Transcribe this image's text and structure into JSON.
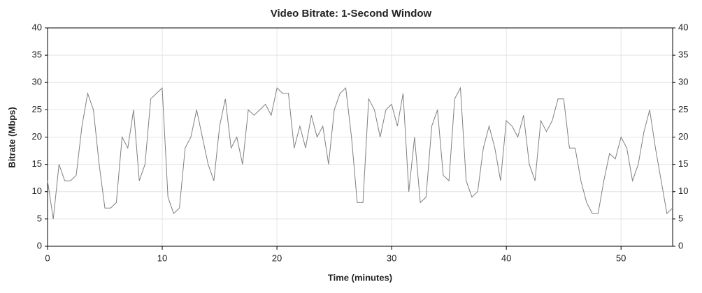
{
  "chart_data": {
    "type": "line",
    "title": "Video Bitrate: 1-Second Window",
    "x_label": "Time (minutes)",
    "y_label": "Bitrate (Mbps)",
    "xlim": [
      0,
      54.5
    ],
    "ylim": [
      0,
      40
    ],
    "xticks": [
      0,
      10,
      20,
      30,
      40,
      50
    ],
    "yticks": [
      0,
      5,
      10,
      15,
      20,
      25,
      30,
      35,
      40
    ],
    "grid": true,
    "series": [
      {
        "color": "#808080",
        "x": [
          0,
          0.5,
          1,
          1.5,
          2,
          2.5,
          3,
          3.5,
          4,
          4.5,
          5,
          5.5,
          6,
          6.5,
          7,
          7.5,
          8,
          8.5,
          9,
          9.5,
          10,
          10.5,
          11,
          11.5,
          12,
          12.5,
          13,
          13.5,
          14,
          14.5,
          15,
          15.5,
          16,
          16.5,
          17,
          17.5,
          18,
          18.5,
          19,
          19.5,
          20,
          20.5,
          21,
          21.5,
          22,
          22.5,
          23,
          23.5,
          24,
          24.5,
          25,
          25.5,
          26,
          26.5,
          27,
          27.5,
          28,
          28.5,
          29,
          29.5,
          30,
          30.5,
          31,
          31.5,
          32,
          32.5,
          33,
          33.5,
          34,
          34.5,
          35,
          35.5,
          36,
          36.5,
          37,
          37.5,
          38,
          38.5,
          39,
          39.5,
          40,
          40.5,
          41,
          41.5,
          42,
          42.5,
          43,
          43.5,
          44,
          44.5,
          45,
          45.5,
          46,
          46.5,
          47,
          47.5,
          48,
          48.5,
          49,
          49.5,
          50,
          50.5,
          51,
          51.5,
          52,
          52.5,
          53,
          53.5,
          54,
          54.5
        ],
        "values": [
          12,
          5,
          15,
          12,
          12,
          13,
          22,
          28,
          25,
          15,
          7,
          7,
          8,
          20,
          18,
          25,
          12,
          15,
          27,
          28,
          29,
          9,
          6,
          7,
          18,
          20,
          25,
          20,
          15,
          12,
          22,
          27,
          18,
          20,
          15,
          25,
          24,
          25,
          26,
          24,
          29,
          28,
          28,
          18,
          22,
          18,
          24,
          20,
          22,
          15,
          25,
          28,
          29,
          20,
          8,
          8,
          27,
          25,
          20,
          25,
          26,
          22,
          28,
          10,
          20,
          8,
          9,
          22,
          25,
          13,
          12,
          27,
          29,
          12,
          9,
          10,
          18,
          22,
          18,
          12,
          23,
          22,
          20,
          24,
          15,
          12,
          23,
          21,
          23,
          27,
          27,
          18,
          18,
          12,
          8,
          6,
          6,
          12,
          17,
          16,
          20,
          18,
          12,
          15,
          21,
          25,
          18,
          12,
          6,
          7
        ]
      }
    ]
  }
}
